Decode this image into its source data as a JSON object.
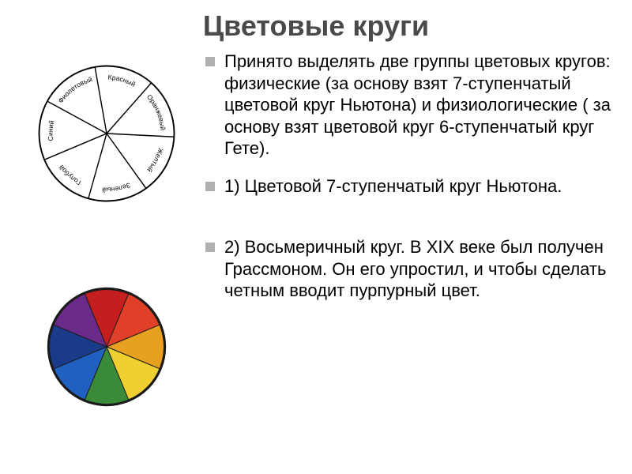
{
  "title": "Цветовые круги",
  "bullets": {
    "intro": "Принято выделять две группы цветовых кругов: физические (за основу взят 7-ступенчатый цветовой круг Ньютона) и физиологические ( за основу взят цветовой круг 6-ступенчатый круг Гете).",
    "item1": " 1) Цветовой 7-ступенчатый круг Ньютона.",
    "item2": "2) Восьмеричный круг. В XIX веке был получен Грассмоном. Он его упростил, и чтобы сделать четным вводит пурпурный цвет."
  },
  "newton_wheel": {
    "segments": 7,
    "stroke": "#000000",
    "fill": "#ffffff",
    "labels": [
      "Красный",
      "Оранжевый",
      "Желтый",
      "Зеленый",
      "Голубой",
      "Синий",
      "Фиолетовый"
    ]
  },
  "color_wheel": {
    "segments": 8,
    "border": "#1a1a1a",
    "colors": [
      "#c41e1e",
      "#e04028",
      "#e8a020",
      "#f0d030",
      "#3a8a3a",
      "#2060c0",
      "#1a3a8a",
      "#6a2a8a"
    ],
    "divider": "#1a1a1a"
  },
  "style": {
    "title_color": "#4a4a4a",
    "bullet_color": "#b0b0b0",
    "text_color": "#000000",
    "title_fontsize": 36,
    "body_fontsize": 22
  }
}
